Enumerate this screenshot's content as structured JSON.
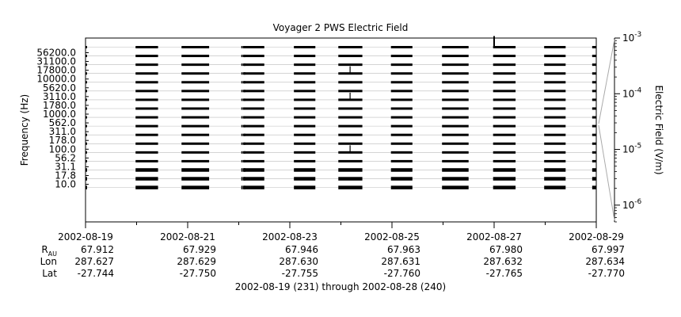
{
  "chart_data": {
    "type": "heatmap",
    "title": "Voyager 2 PWS Electric Field",
    "ylabel": "Frequency (Hz)",
    "xlabel": "2002-08-19 (231) through 2002-08-28 (240)",
    "colorbar_label": "Electric Field (V/m)",
    "colorbar_scale": "log",
    "colorbar_range": [
      5e-07,
      0.001
    ],
    "colorbar_ticks": [
      {
        "value": 0.001,
        "base": "10",
        "exp": "-3"
      },
      {
        "value": 0.0001,
        "base": "10",
        "exp": "-4"
      },
      {
        "value": 1e-05,
        "base": "10",
        "exp": "-5"
      },
      {
        "value": 1e-06,
        "base": "10",
        "exp": "-6"
      }
    ],
    "frequency_channels": [
      "56200.0",
      "31100.0",
      "17800.0",
      "10000.0",
      "5620.0",
      "3110.0",
      "1780.0",
      "1000.0",
      "562.0",
      "311.0",
      "178.0",
      "100.0",
      "56.2",
      "31.1",
      "17.8",
      "10.0"
    ],
    "x_range": [
      "2002-08-19",
      "2002-08-29"
    ],
    "x_ticks": [
      "2002-08-19",
      "2002-08-21",
      "2002-08-23",
      "2002-08-25",
      "2002-08-27",
      "2002-08-29"
    ],
    "ephemeris": {
      "labels": [
        {
          "main": "R",
          "sub": "AU"
        },
        {
          "main": "Lon",
          "sub": ""
        },
        {
          "main": "Lat",
          "sub": ""
        }
      ],
      "R": [
        "67.912",
        "67.929",
        "67.946",
        "67.963",
        "67.980",
        "67.997"
      ],
      "Lon": [
        "287.627",
        "287.629",
        "287.630",
        "287.631",
        "287.632",
        "287.634"
      ],
      "Lat": [
        "-27.744",
        "-27.750",
        "-27.755",
        "-27.760",
        "-27.765",
        "-27.770"
      ]
    },
    "data_segments_days": [
      [
        0.0,
        0.03
      ],
      [
        0.98,
        1.42
      ],
      [
        1.88,
        2.42
      ],
      [
        3.05,
        3.07
      ],
      [
        3.1,
        3.13
      ],
      [
        3.08,
        3.5
      ],
      [
        4.08,
        4.5
      ],
      [
        4.95,
        5.42
      ],
      [
        5.98,
        6.4
      ],
      [
        6.98,
        7.5
      ],
      [
        7.98,
        8.42
      ],
      [
        8.98,
        9.4
      ],
      [
        9.92,
        10.0
      ]
    ],
    "event_markers": [
      {
        "day": 5.18,
        "channel": "10000.0",
        "strength": "weak"
      },
      {
        "day": 5.18,
        "channel": "1780.0",
        "strength": "weak"
      },
      {
        "day": 5.18,
        "channel": "56.2",
        "strength": "weak"
      },
      {
        "day": 8.0,
        "channel": "56200.0",
        "strength": "strong"
      }
    ]
  }
}
